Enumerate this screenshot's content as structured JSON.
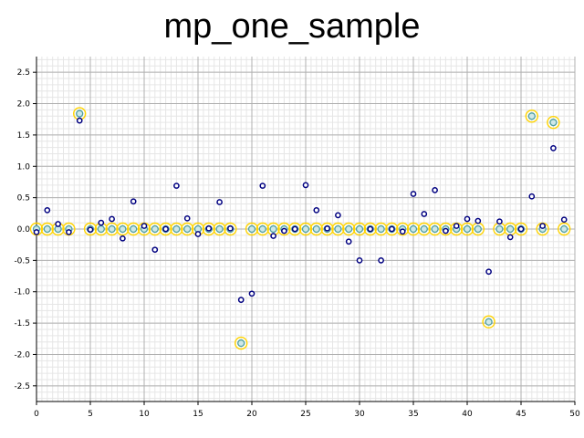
{
  "chart_data": {
    "type": "scatter",
    "title": "mp_one_sample",
    "xlabel": "",
    "ylabel": "",
    "xlim": [
      0,
      50
    ],
    "ylim": [
      -2.75,
      2.75
    ],
    "grid": true,
    "x_ticks": [
      "0",
      "5",
      "10",
      "15",
      "20",
      "25",
      "30",
      "35",
      "40",
      "45",
      "50"
    ],
    "y_ticks": [
      "2.5",
      "2.0",
      "1.5",
      "1.0",
      "0.5",
      "0.0",
      "-0.5",
      "-1.0",
      "-1.5",
      "-2.0",
      "-2.5"
    ],
    "series": [
      {
        "color": "#000080",
        "points": [
          [
            0,
            -0.05
          ],
          [
            1,
            0.3
          ],
          [
            2,
            0.08
          ],
          [
            3,
            -0.05
          ],
          [
            4,
            1.73
          ],
          [
            5,
            -0.01
          ],
          [
            6,
            0.1
          ],
          [
            7,
            0.16
          ],
          [
            8,
            -0.15
          ],
          [
            9,
            0.44
          ],
          [
            10,
            0.05
          ],
          [
            11,
            -0.33
          ],
          [
            12,
            0.0
          ],
          [
            13,
            0.69
          ],
          [
            14,
            0.17
          ],
          [
            15,
            -0.08
          ],
          [
            16,
            0.01
          ],
          [
            17,
            0.43
          ],
          [
            18,
            0.01
          ],
          [
            19,
            -1.13
          ],
          [
            20,
            -1.03
          ],
          [
            21,
            0.69
          ],
          [
            22,
            -0.11
          ],
          [
            23,
            -0.03
          ],
          [
            24,
            0.0
          ],
          [
            25,
            0.7
          ],
          [
            26,
            0.3
          ],
          [
            27,
            0.01
          ],
          [
            28,
            0.22
          ],
          [
            29,
            -0.2
          ],
          [
            30,
            -0.5
          ],
          [
            31,
            0.0
          ],
          [
            32,
            -0.5
          ],
          [
            33,
            0.0
          ],
          [
            34,
            -0.04
          ],
          [
            35,
            0.56
          ],
          [
            36,
            0.24
          ],
          [
            37,
            0.62
          ],
          [
            38,
            -0.03
          ],
          [
            39,
            0.05
          ],
          [
            40,
            0.16
          ],
          [
            41,
            0.13
          ],
          [
            42,
            -0.68
          ],
          [
            43,
            0.12
          ],
          [
            44,
            -0.13
          ],
          [
            45,
            0.0
          ],
          [
            46,
            0.52
          ],
          [
            47,
            0.05
          ],
          [
            48,
            1.29
          ],
          [
            49,
            0.15
          ]
        ]
      },
      {
        "color": "#4f9f9f",
        "highlight_color": "#ffd400",
        "points": [
          [
            0,
            0
          ],
          [
            1,
            0
          ],
          [
            2,
            0
          ],
          [
            3,
            0
          ],
          [
            4,
            1.84
          ],
          [
            5,
            0
          ],
          [
            6,
            0
          ],
          [
            7,
            0
          ],
          [
            8,
            0
          ],
          [
            9,
            0
          ],
          [
            10,
            0
          ],
          [
            11,
            0
          ],
          [
            12,
            0
          ],
          [
            13,
            0
          ],
          [
            14,
            0
          ],
          [
            15,
            0
          ],
          [
            16,
            0
          ],
          [
            17,
            0
          ],
          [
            18,
            0
          ],
          [
            19,
            -1.82
          ],
          [
            20,
            0
          ],
          [
            21,
            0
          ],
          [
            22,
            0
          ],
          [
            23,
            0
          ],
          [
            24,
            0
          ],
          [
            25,
            0
          ],
          [
            26,
            0
          ],
          [
            27,
            0
          ],
          [
            28,
            0
          ],
          [
            29,
            0
          ],
          [
            30,
            0
          ],
          [
            31,
            0
          ],
          [
            32,
            0
          ],
          [
            33,
            0
          ],
          [
            34,
            0
          ],
          [
            35,
            0
          ],
          [
            36,
            0
          ],
          [
            37,
            0
          ],
          [
            38,
            0
          ],
          [
            39,
            0
          ],
          [
            40,
            0
          ],
          [
            41,
            0
          ],
          [
            42,
            -1.48
          ],
          [
            43,
            0
          ],
          [
            44,
            0
          ],
          [
            45,
            0
          ],
          [
            46,
            1.8
          ],
          [
            47,
            0
          ],
          [
            48,
            1.7
          ],
          [
            49,
            0
          ]
        ]
      }
    ]
  }
}
